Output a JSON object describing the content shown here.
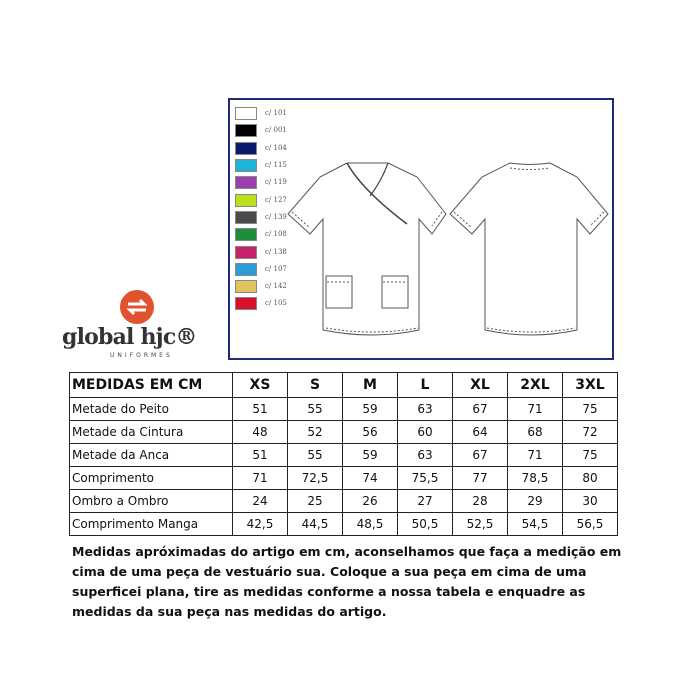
{
  "colors": [
    {
      "code": "c/ 101",
      "hex": "#ffffff"
    },
    {
      "code": "c/ 001",
      "hex": "#000000"
    },
    {
      "code": "c/ 104",
      "hex": "#0c1a6b"
    },
    {
      "code": "c/ 115",
      "hex": "#1fb3d6"
    },
    {
      "code": "c/ 119",
      "hex": "#9b3fae"
    },
    {
      "code": "c/ 127",
      "hex": "#b9e019"
    },
    {
      "code": "c/ 139",
      "hex": "#4b4b4b"
    },
    {
      "code": "c/ 108",
      "hex": "#1f8d3a"
    },
    {
      "code": "c/ 138",
      "hex": "#c8226a"
    },
    {
      "code": "c/ 107",
      "hex": "#2e9bd9"
    },
    {
      "code": "c/ 142",
      "hex": "#e0c35a"
    },
    {
      "code": "c/ 105",
      "hex": "#d8122a"
    }
  ],
  "logo": {
    "name": "global hjc®",
    "sub": "UNIFORMES",
    "color": "#e0532e"
  },
  "table": {
    "header": [
      "MEDIDAS EM CM",
      "XS",
      "S",
      "M",
      "L",
      "XL",
      "2XL",
      "3XL"
    ],
    "rows": [
      [
        "Metade do Peito",
        "51",
        "55",
        "59",
        "63",
        "67",
        "71",
        "75"
      ],
      [
        "Metade da Cintura",
        "48",
        "52",
        "56",
        "60",
        "64",
        "68",
        "72"
      ],
      [
        "Metade da Anca",
        "51",
        "55",
        "59",
        "63",
        "67",
        "71",
        "75"
      ],
      [
        "Comprimento",
        "71",
        "72,5",
        "74",
        "75,5",
        "77",
        "78,5",
        "80"
      ],
      [
        "Ombro a Ombro",
        "24",
        "25",
        "26",
        "27",
        "28",
        "29",
        "30"
      ],
      [
        "Comprimento Manga",
        "42,5",
        "44,5",
        "48,5",
        "50,5",
        "52,5",
        "54,5",
        "56,5"
      ]
    ]
  },
  "note": "Medidas apróximadas do artigo em cm, aconselhamos que faça a medição em cima de uma peça de vestuário sua. Coloque a sua peça em cima de uma superficei plana, tire as medidas conforme a nossa tabela e enquadre as medidas da sua peça nas medidas do artigo."
}
